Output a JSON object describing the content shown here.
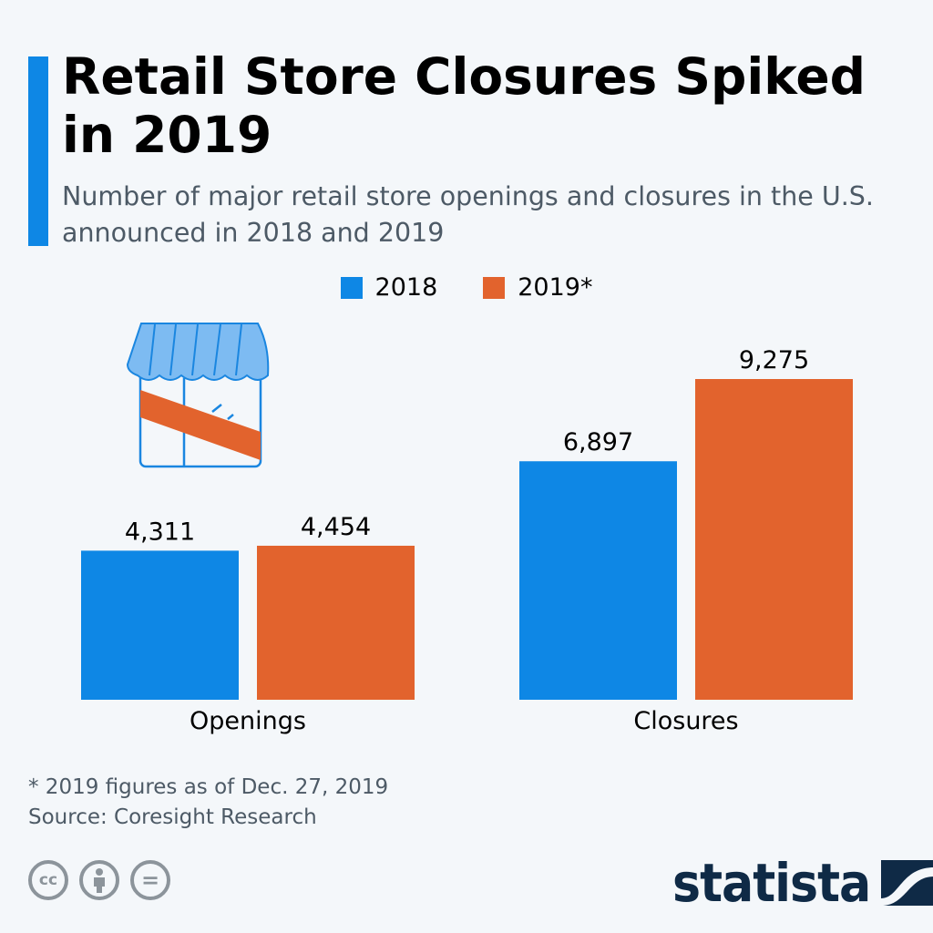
{
  "header": {
    "title": "Retail Store Closures Spiked in 2019",
    "subtitle": "Number of major retail store openings and closures in the U.S. announced in 2018 and 2019"
  },
  "chart_data": {
    "type": "bar",
    "title": "Retail Store Closures Spiked in 2019",
    "subtitle": "Number of major retail store openings and closures in the U.S. announced in 2018 and 2019",
    "categories": [
      "Openings",
      "Closures"
    ],
    "series": [
      {
        "name": "2018",
        "legend_label": "2018",
        "color": "#0e87e5",
        "values": [
          4311,
          6897
        ],
        "labels": [
          "4,311",
          "6,897"
        ]
      },
      {
        "name": "2019*",
        "legend_label": "2019*",
        "color": "#e2632d",
        "values": [
          4454,
          9275
        ],
        "labels": [
          "4,454",
          "9,275"
        ]
      }
    ],
    "legend_position": "top-center",
    "grid": false,
    "ylim": [
      0,
      9275
    ]
  },
  "footer": {
    "note": "* 2019 figures as of Dec. 27, 2019",
    "source": "Source: Coresight Research",
    "license_icons": [
      "cc-icon",
      "attribution-icon",
      "no-derivatives-icon"
    ],
    "cc_text": "cc",
    "equals_text": "=",
    "brand": "statista"
  },
  "icons": {
    "store": "store-closed-icon"
  }
}
